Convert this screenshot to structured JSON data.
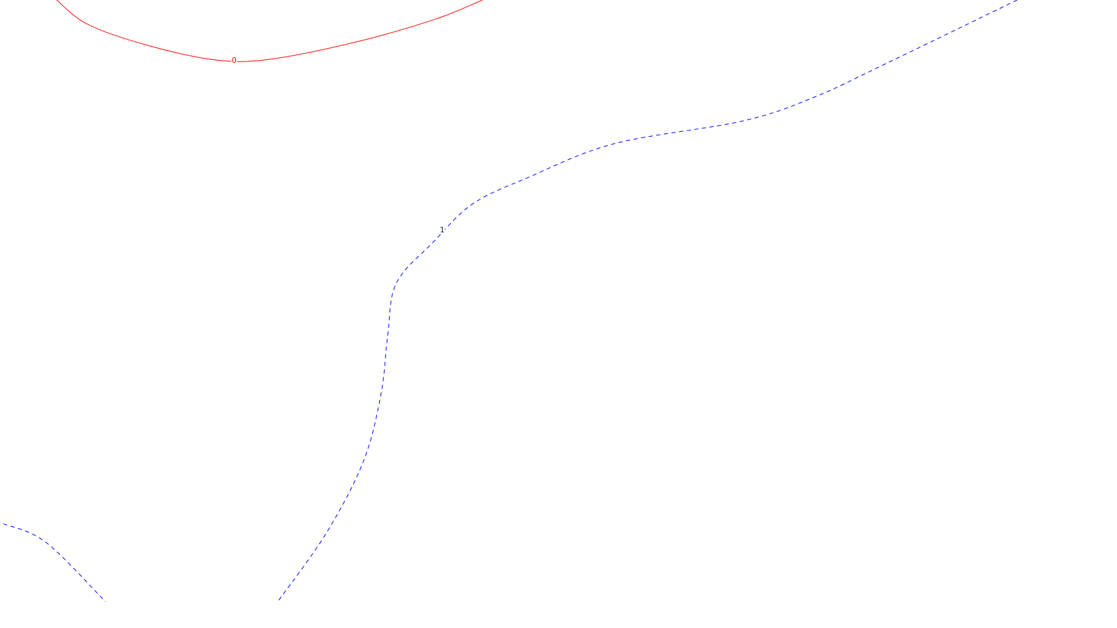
{
  "chart_data": {
    "type": "contour",
    "title": "",
    "xlabel": "",
    "ylabel": "",
    "xlim": [
      0,
      100
    ],
    "ylim": [
      0,
      100
    ],
    "grid": false,
    "levels": [
      {
        "level": "0",
        "label": "0",
        "color": "#ff0000",
        "style": "solid",
        "label_at": [
          21.5,
          90.2
        ],
        "paths": [
          [
            [
              5.2,
              100.0
            ],
            [
              8.1,
              96.0
            ],
            [
              13.8,
              92.5
            ],
            [
              20.0,
              90.2
            ],
            [
              25.0,
              90.4
            ],
            [
              33.0,
              93.3
            ],
            [
              40.0,
              96.9
            ],
            [
              44.3,
              100.0
            ]
          ]
        ]
      },
      {
        "level": "1",
        "label": "1",
        "color": "#0000ff",
        "style": "dashed",
        "label_at": [
          40.6,
          62.6
        ],
        "paths": [
          [
            [
              93.4,
              100.0
            ],
            [
              81.3,
              89.6
            ],
            [
              74.8,
              84.2
            ],
            [
              68.2,
              80.3
            ],
            [
              56.4,
              76.6
            ],
            [
              48.5,
              71.1
            ],
            [
              43.4,
              66.8
            ],
            [
              39.8,
              60.6
            ],
            [
              36.4,
              53.9
            ],
            [
              35.6,
              45.4
            ],
            [
              35.0,
              36.0
            ],
            [
              33.4,
              25.0
            ],
            [
              30.0,
              13.3
            ],
            [
              25.5,
              2.0
            ]
          ],
          [
            [
              0.3,
              14.7
            ],
            [
              4.2,
              11.7
            ],
            [
              9.7,
              2.0
            ]
          ]
        ]
      }
    ]
  }
}
